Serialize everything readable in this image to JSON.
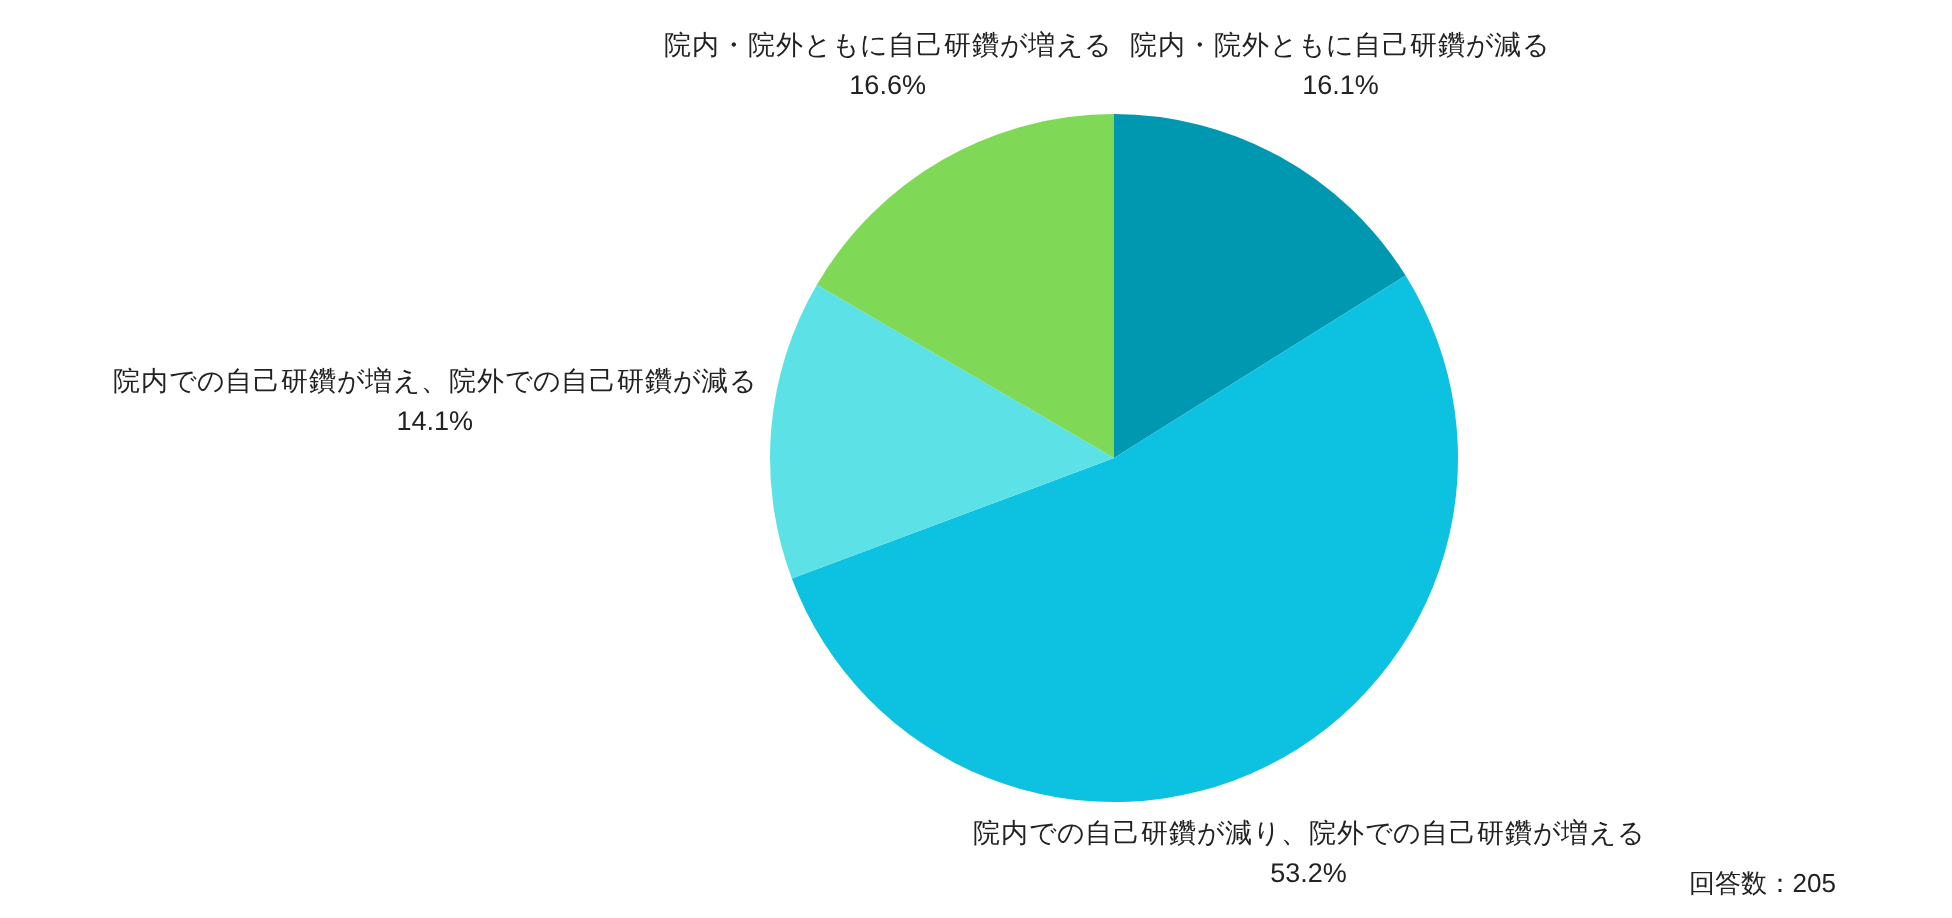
{
  "chart_data": {
    "type": "pie",
    "categories": [
      "院内・院外ともに自己研鑽が減る",
      "院内での自己研鑽が減り、院外での自己研鑽が増える",
      "院内での自己研鑽が増え、院外での自己研鑽が減る",
      "院内・院外ともに自己研鑽が増える"
    ],
    "values": [
      16.1,
      53.2,
      14.1,
      16.6
    ],
    "value_labels": [
      "16.1%",
      "53.2%",
      "14.1%",
      "16.6%"
    ],
    "colors": [
      "#0098b0",
      "#0dc2e0",
      "#5ce1e6",
      "#7fd957"
    ],
    "annotations": [
      "回答数：205"
    ]
  }
}
